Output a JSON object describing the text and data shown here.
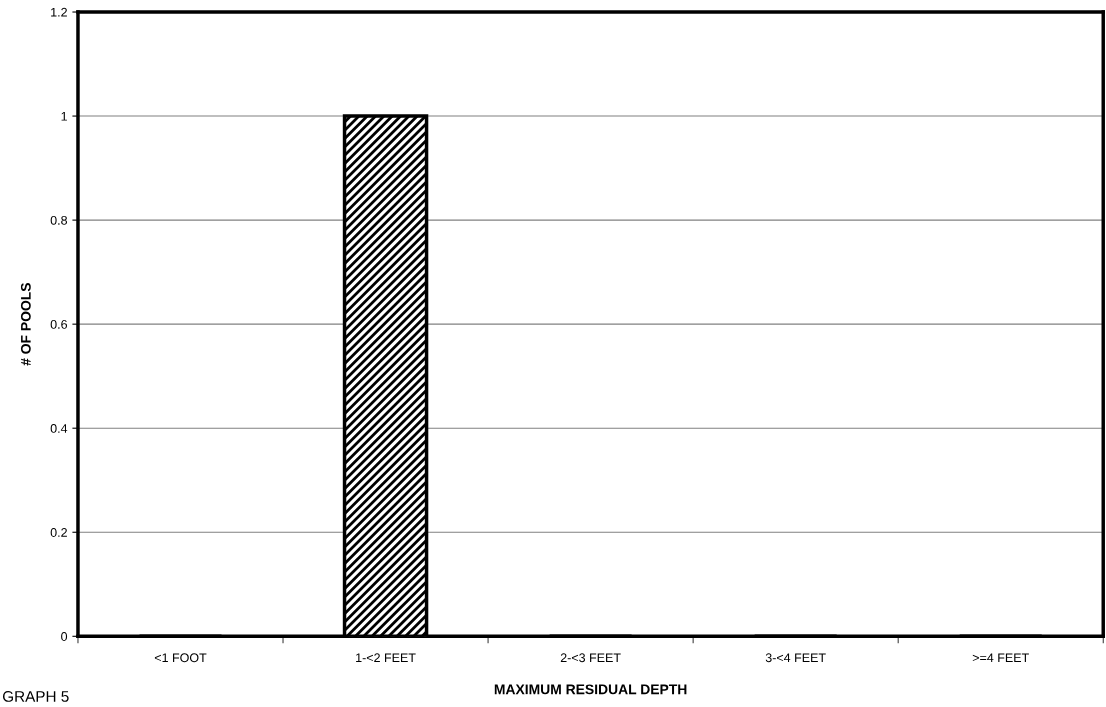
{
  "chart_data": {
    "type": "bar",
    "xlabel": "MAXIMUM RESIDUAL DEPTH",
    "ylabel": "# OF POOLS",
    "categories": [
      "<1 FOOT",
      "1-<2 FEET",
      "2-<3 FEET",
      "3-<4 FEET",
      ">=4 FEET"
    ],
    "values": [
      0,
      1,
      0,
      0,
      0
    ],
    "color": "#000000",
    "ylim": [
      0,
      1.2
    ],
    "yticks": [
      0,
      0.2,
      0.4,
      0.6,
      0.8,
      1,
      1.2
    ],
    "grid": "y",
    "legend": false,
    "annotations": [
      "GRAPH 5"
    ]
  }
}
